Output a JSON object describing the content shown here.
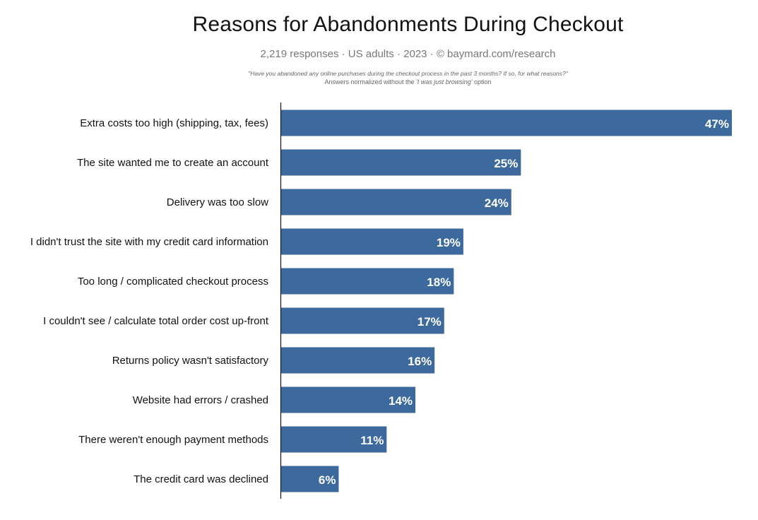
{
  "header": {
    "title": "Reasons for Abandonments During Checkout",
    "subtitle": "2,219 responses  ·  US adults  ·  2023  ·  ©  baymard.com/research",
    "question": "\"Have you abandoned any online purchases during the checkout process in the past 3 months? If so, for what reasons?\"",
    "note_prefix": "Answers normalized without the ",
    "note_emphasis": "'I was just browsing'",
    "note_suffix": " option"
  },
  "colors": {
    "bar": "#3d6a9c",
    "axis": "#111111",
    "value_text": "#ffffff"
  },
  "chart_data": {
    "type": "bar",
    "orientation": "horizontal",
    "title": "Reasons for Abandonments During Checkout",
    "categories": [
      "Extra costs too high (shipping, tax, fees)",
      "The site wanted me to create an account",
      "Delivery was too slow",
      "I didn't trust the site with my credit card information",
      "Too long / complicated checkout process",
      "I couldn't see / calculate total order cost up-front",
      "Returns policy wasn't satisfactory",
      "Website had errors / crashed",
      "There weren't enough payment methods",
      "The credit card was declined"
    ],
    "values": [
      47,
      25,
      24,
      19,
      18,
      17,
      16,
      14,
      11,
      6
    ],
    "value_labels": [
      "47%",
      "25%",
      "24%",
      "19%",
      "18%",
      "17%",
      "16%",
      "14%",
      "11%",
      "6%"
    ],
    "unit": "%",
    "xlim": [
      0,
      47
    ],
    "grid": false,
    "legend": "none"
  }
}
